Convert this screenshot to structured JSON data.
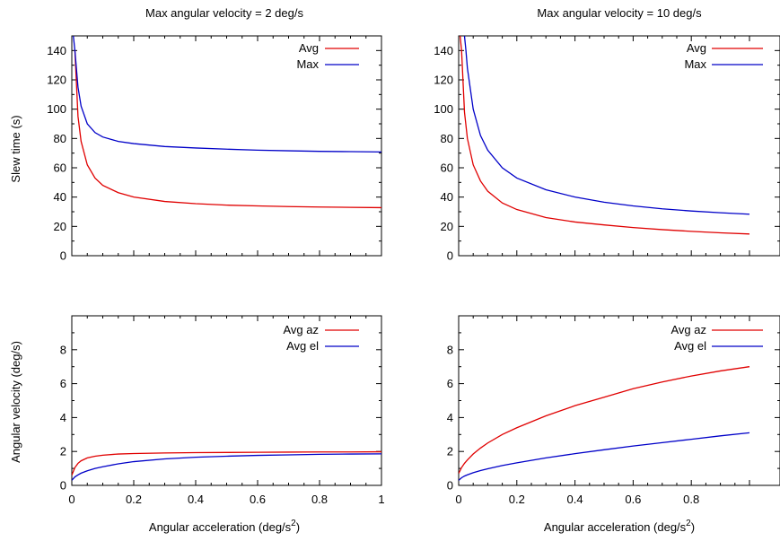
{
  "colors": {
    "red": "#e00000",
    "blue": "#0000c8",
    "axis": "#000000"
  },
  "chart_data": [
    {
      "type": "line",
      "title": "Max angular velocity = 2 deg/s",
      "xlabel": "",
      "ylabel": "Slew time (s)",
      "xlim": [
        0,
        1
      ],
      "ylim": [
        0,
        150
      ],
      "yticks": [
        "0",
        "20",
        "40",
        "60",
        "80",
        "100",
        "120",
        "140"
      ],
      "xticks": [],
      "legend": "top-right",
      "series": [
        {
          "name": "Avg",
          "color": "#e00000",
          "x": [
            0.01,
            0.02,
            0.03,
            0.05,
            0.075,
            0.1,
            0.15,
            0.2,
            0.3,
            0.4,
            0.5,
            0.6,
            0.7,
            0.8,
            0.9,
            1.0
          ],
          "y": [
            140,
            95,
            78,
            62,
            53,
            48,
            43,
            40,
            37,
            35.5,
            34.5,
            34,
            33.5,
            33.2,
            33,
            32.8
          ]
        },
        {
          "name": "Max",
          "color": "#0000c8",
          "x": [
            0.005,
            0.01,
            0.02,
            0.03,
            0.05,
            0.075,
            0.1,
            0.15,
            0.2,
            0.3,
            0.4,
            0.5,
            0.6,
            0.7,
            0.8,
            0.9,
            1.0
          ],
          "y": [
            150,
            140,
            115,
            102,
            90,
            84,
            81,
            78,
            76.5,
            74.5,
            73.5,
            72.7,
            72,
            71.6,
            71.2,
            71,
            70.8
          ]
        }
      ]
    },
    {
      "type": "line",
      "title": "Max angular velocity = 10 deg/s",
      "xlabel": "",
      "ylabel": "",
      "xlim": [
        0,
        1
      ],
      "ylim": [
        0,
        150
      ],
      "yticks": [
        "0",
        "20",
        "40",
        "60",
        "80",
        "100",
        "120",
        "140"
      ],
      "xticks": [],
      "legend": "top-right",
      "series": [
        {
          "name": "Avg",
          "color": "#e00000",
          "x": [
            0.005,
            0.01,
            0.02,
            0.03,
            0.05,
            0.075,
            0.1,
            0.15,
            0.2,
            0.3,
            0.4,
            0.5,
            0.6,
            0.7,
            0.8,
            0.9,
            1.0
          ],
          "y": [
            150,
            140,
            98,
            80,
            62,
            51,
            44,
            36,
            31.5,
            26,
            23,
            21,
            19.2,
            17.8,
            16.6,
            15.6,
            14.8
          ]
        },
        {
          "name": "Max",
          "color": "#0000c8",
          "x": [
            0.02,
            0.025,
            0.03,
            0.05,
            0.075,
            0.1,
            0.15,
            0.2,
            0.3,
            0.4,
            0.5,
            0.6,
            0.7,
            0.8,
            0.9,
            1.0
          ],
          "y": [
            150,
            140,
            128,
            100,
            82,
            72,
            60,
            53,
            45,
            40,
            36.5,
            34,
            32,
            30.5,
            29.3,
            28.3
          ]
        }
      ]
    },
    {
      "type": "line",
      "title": "",
      "xlabel": "Angular acceleration (deg/s²)",
      "ylabel": "Angular velocity (deg/s)",
      "xlim": [
        0,
        1
      ],
      "ylim": [
        0,
        10
      ],
      "yticks": [
        "0",
        "2",
        "4",
        "6",
        "8"
      ],
      "xticks": [
        "0",
        "0.2",
        "0.4",
        "0.6",
        "0.8",
        "1"
      ],
      "legend": "top-right",
      "series": [
        {
          "name": "Avg az",
          "color": "#e00000",
          "x": [
            0.0,
            0.01,
            0.02,
            0.03,
            0.05,
            0.075,
            0.1,
            0.15,
            0.2,
            0.3,
            0.4,
            0.5,
            0.6,
            0.7,
            0.8,
            0.9,
            1.0
          ],
          "y": [
            0.6,
            1.05,
            1.3,
            1.45,
            1.62,
            1.72,
            1.78,
            1.85,
            1.88,
            1.91,
            1.93,
            1.94,
            1.95,
            1.96,
            1.97,
            1.97,
            1.98
          ]
        },
        {
          "name": "Avg el",
          "color": "#0000c8",
          "x": [
            0.0,
            0.01,
            0.02,
            0.03,
            0.05,
            0.075,
            0.1,
            0.15,
            0.2,
            0.3,
            0.4,
            0.5,
            0.6,
            0.7,
            0.8,
            0.9,
            1.0
          ],
          "y": [
            0.3,
            0.5,
            0.62,
            0.72,
            0.86,
            1.0,
            1.1,
            1.27,
            1.4,
            1.56,
            1.66,
            1.72,
            1.77,
            1.8,
            1.83,
            1.85,
            1.86
          ]
        }
      ]
    },
    {
      "type": "line",
      "title": "",
      "xlabel": "Angular acceleration (deg/s²)",
      "ylabel": "",
      "xlim": [
        0,
        1
      ],
      "ylim": [
        0,
        10
      ],
      "yticks": [
        "0",
        "2",
        "4",
        "6",
        "8"
      ],
      "xticks": [
        "0",
        "0.2",
        "0.4",
        "0.6",
        "0.8"
      ],
      "legend": "top-right",
      "series": [
        {
          "name": "Avg az",
          "color": "#e00000",
          "x": [
            0.0,
            0.01,
            0.02,
            0.03,
            0.05,
            0.075,
            0.1,
            0.15,
            0.2,
            0.3,
            0.4,
            0.5,
            0.6,
            0.7,
            0.8,
            0.9,
            1.0
          ],
          "y": [
            0.7,
            1.05,
            1.3,
            1.5,
            1.85,
            2.2,
            2.5,
            3.0,
            3.4,
            4.1,
            4.7,
            5.2,
            5.7,
            6.1,
            6.45,
            6.75,
            7.0
          ]
        },
        {
          "name": "Avg el",
          "color": "#0000c8",
          "x": [
            0.0,
            0.01,
            0.02,
            0.03,
            0.05,
            0.075,
            0.1,
            0.15,
            0.2,
            0.3,
            0.4,
            0.5,
            0.6,
            0.7,
            0.8,
            0.9,
            1.0
          ],
          "y": [
            0.3,
            0.45,
            0.55,
            0.62,
            0.75,
            0.87,
            0.98,
            1.17,
            1.33,
            1.62,
            1.87,
            2.1,
            2.32,
            2.52,
            2.72,
            2.92,
            3.1
          ]
        }
      ]
    }
  ]
}
